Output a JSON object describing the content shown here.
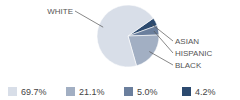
{
  "chart_data": {
    "type": "pie",
    "categories": [
      "WHITE",
      "BLACK",
      "HISPANIC",
      "ASIAN"
    ],
    "values": [
      69.7,
      21.1,
      5.0,
      4.2
    ],
    "value_labels": [
      "69.7%",
      "21.1%",
      "5.0%",
      "4.2%"
    ],
    "colors": [
      "#d8dee8",
      "#a2afc3",
      "#6b7f9d",
      "#2c4a6f"
    ],
    "legend": "bottom"
  }
}
